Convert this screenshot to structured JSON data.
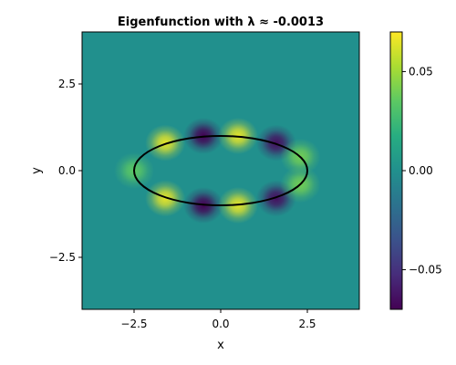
{
  "chart_data": {
    "type": "heatmap",
    "title": "Eigenfunction with λ ≈ -0.0013",
    "xlabel": "x",
    "ylabel": "y",
    "xlim": [
      -4,
      4
    ],
    "ylim": [
      -4,
      4
    ],
    "x_ticks": [
      -2.5,
      0.0,
      2.5
    ],
    "x_tick_labels": [
      "−2.5",
      "0.0",
      "2.5"
    ],
    "y_ticks": [
      -2.5,
      0.0,
      2.5
    ],
    "y_tick_labels": [
      "−2.5",
      "0.0",
      "2.5"
    ],
    "colormap": "viridis",
    "color_range": [
      -0.07,
      0.07
    ],
    "colorbar_ticks": [
      -0.05,
      0.0,
      0.05
    ],
    "colorbar_tick_labels": [
      "−0.05",
      "0.00",
      "0.05"
    ],
    "ellipse": {
      "center": [
        0,
        0
      ],
      "semi_axis_x": 2.5,
      "semi_axis_y": 1.0,
      "color": "#000000"
    },
    "lobes": [
      {
        "x": -2.5,
        "y": 0.0,
        "value": 0.035
      },
      {
        "x": -1.6,
        "y": 0.8,
        "value": 0.065
      },
      {
        "x": -0.5,
        "y": 1.0,
        "value": -0.07
      },
      {
        "x": 0.5,
        "y": 1.0,
        "value": 0.065
      },
      {
        "x": 1.6,
        "y": 0.8,
        "value": -0.065
      },
      {
        "x": 2.3,
        "y": 0.4,
        "value": 0.04
      },
      {
        "x": -1.6,
        "y": -0.8,
        "value": 0.065
      },
      {
        "x": -0.5,
        "y": -1.0,
        "value": -0.07
      },
      {
        "x": 0.5,
        "y": -1.0,
        "value": 0.065
      },
      {
        "x": 1.6,
        "y": -0.8,
        "value": -0.065
      },
      {
        "x": 2.3,
        "y": -0.4,
        "value": 0.04
      }
    ]
  }
}
